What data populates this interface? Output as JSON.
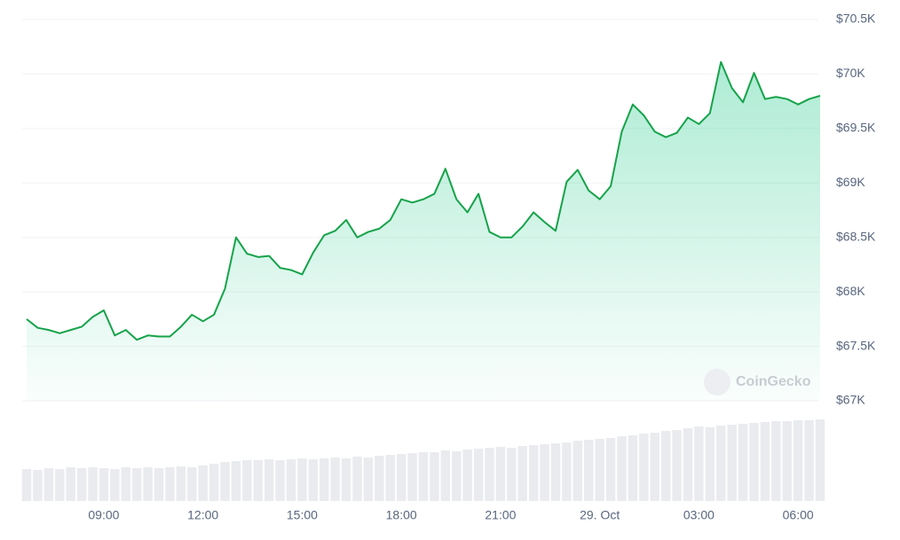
{
  "chart_data": {
    "type": "line",
    "watermark": "CoinGecko",
    "categories": [
      null,
      null,
      null,
      null,
      null,
      null,
      null,
      "09:00",
      null,
      null,
      null,
      null,
      null,
      null,
      null,
      null,
      "12:00",
      null,
      null,
      null,
      null,
      null,
      null,
      null,
      null,
      "15:00",
      null,
      null,
      null,
      null,
      null,
      null,
      null,
      null,
      "18:00",
      null,
      null,
      null,
      null,
      null,
      null,
      null,
      null,
      "21:00",
      null,
      null,
      null,
      null,
      null,
      null,
      null,
      null,
      "29. Oct",
      null,
      null,
      null,
      null,
      null,
      null,
      null,
      null,
      "03:00",
      null,
      null,
      null,
      null,
      null,
      null,
      null,
      null,
      "06:00",
      null,
      null
    ],
    "series": [
      {
        "color": "#16a34a",
        "values": [
          67750,
          67670,
          67650,
          67620,
          67650,
          67680,
          67770,
          67830,
          67600,
          67650,
          67560,
          67600,
          67590,
          67590,
          67680,
          67790,
          67730,
          67790,
          68030,
          68500,
          68350,
          68320,
          68330,
          68220,
          68200,
          68160,
          68360,
          68520,
          68560,
          68660,
          68500,
          68550,
          68580,
          68660,
          68850,
          68820,
          68850,
          68900,
          69130,
          68850,
          68730,
          68900,
          68550,
          68500,
          68500,
          68600,
          68730,
          68640,
          68560,
          69010,
          69120,
          68930,
          68850,
          68970,
          69470,
          69720,
          69620,
          69470,
          69420,
          69460,
          69600,
          69540,
          69640,
          70110,
          69870,
          69740,
          70010,
          69770,
          69790,
          69770,
          69720,
          69770,
          69800
        ]
      }
    ],
    "volume": [
      36,
      35,
      37,
      36,
      38,
      37,
      38,
      37,
      36,
      38,
      37,
      38,
      37,
      38,
      39,
      38,
      40,
      42,
      44,
      45,
      46,
      46,
      47,
      46,
      47,
      48,
      47,
      48,
      49,
      48,
      50,
      49,
      51,
      52,
      53,
      54,
      55,
      55,
      57,
      56,
      58,
      59,
      60,
      61,
      60,
      62,
      63,
      64,
      65,
      66,
      68,
      69,
      70,
      71,
      73,
      74,
      76,
      77,
      79,
      80,
      82,
      84,
      83,
      85,
      86,
      87,
      88,
      89,
      90,
      90,
      91,
      91,
      92
    ],
    "ylim": [
      67000,
      70500
    ],
    "yticks": [
      {
        "value": 67000,
        "label": "$67K"
      },
      {
        "value": 67500,
        "label": "$67.5K"
      },
      {
        "value": 68000,
        "label": "$68K"
      },
      {
        "value": 68500,
        "label": "$68.5K"
      },
      {
        "value": 69000,
        "label": "$69K"
      },
      {
        "value": 69500,
        "label": "$69.5K"
      },
      {
        "value": 70000,
        "label": "$70K"
      },
      {
        "value": 70500,
        "label": "$70.5K"
      }
    ],
    "grid": true
  }
}
